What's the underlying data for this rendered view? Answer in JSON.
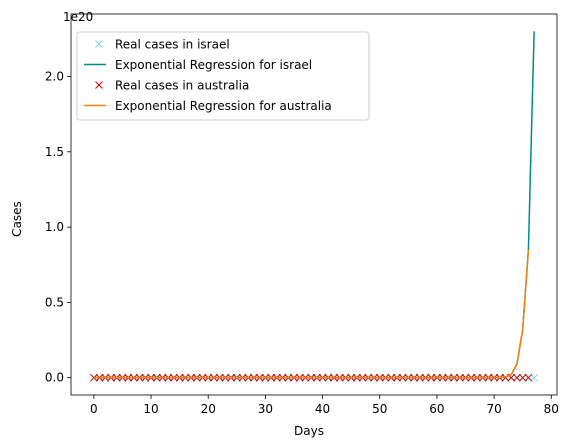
{
  "chart_data": {
    "type": "line",
    "title": "",
    "xlabel": "Days",
    "ylabel": "Cases",
    "offset_text": "1e20",
    "xlim": [
      -4,
      81
    ],
    "ylim": [
      -0.115,
      2.415
    ],
    "xticks": [
      0,
      10,
      20,
      30,
      40,
      50,
      60,
      70,
      80
    ],
    "yticks": [
      0.0,
      0.5,
      1.0,
      1.5,
      2.0
    ],
    "ytick_labels": [
      "0.0",
      "0.5",
      "1.0",
      "1.5",
      "2.0"
    ],
    "y_unit": "x 1e20",
    "grid": false,
    "legend_position": "top-left",
    "series": [
      {
        "name": "Real cases in israel",
        "kind": "scatter",
        "marker": "x",
        "color": "#87CEEB",
        "x_start": 0,
        "x_end": 77,
        "values": "all approximately 0"
      },
      {
        "name": "Exponential Regression for israel",
        "kind": "line",
        "color": "#008B8B",
        "x": [
          0,
          68,
          69,
          70,
          71,
          72,
          73,
          74,
          75,
          76,
          77
        ],
        "y": [
          0,
          0.0,
          0.0,
          0.001,
          0.002,
          0.005,
          0.02,
          0.09,
          0.32,
          0.85,
          2.3
        ]
      },
      {
        "name": "Real cases in australia",
        "kind": "scatter",
        "marker": "x",
        "color": "#CC0000",
        "x_start": 0,
        "x_end": 76,
        "values": "all approximately 0"
      },
      {
        "name": "Exponential Regression for australia",
        "kind": "line",
        "color": "#FF7F0E",
        "x": [
          0,
          68,
          69,
          70,
          71,
          72,
          73,
          74,
          75,
          76
        ],
        "y": [
          0,
          0.0,
          0.0,
          0.001,
          0.002,
          0.005,
          0.02,
          0.09,
          0.32,
          0.85
        ]
      }
    ]
  }
}
